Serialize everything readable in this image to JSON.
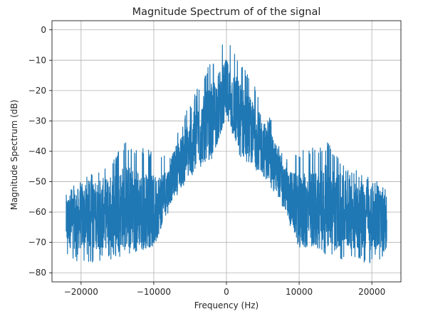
{
  "chart_data": {
    "type": "line",
    "title": "Magnitude Spectrum of of the signal",
    "xlabel": "Frequency (Hz)",
    "ylabel": "Magnitude Spectrum (dB)",
    "xlim": [
      -24000,
      24000
    ],
    "ylim": [
      -83,
      3
    ],
    "grid": true,
    "x_ticks": [
      -20000,
      -10000,
      0,
      10000,
      20000
    ],
    "x_tick_labels": [
      "−20000",
      "−10000",
      "0",
      "10000",
      "20000"
    ],
    "y_ticks": [
      0,
      -10,
      -20,
      -30,
      -40,
      -50,
      -60,
      -70,
      -80
    ],
    "y_tick_labels": [
      "0",
      "−10",
      "−20",
      "−30",
      "−40",
      "−50",
      "−60",
      "−70",
      "−80"
    ],
    "series": [
      {
        "color": "#1f77b4",
        "envelope": {
          "x": [
            -22050,
            -20000,
            -16000,
            -14000,
            -10000,
            -8000,
            -7000,
            -4000,
            -2000,
            0,
            2000,
            4000,
            7000,
            8000,
            10000,
            14000,
            16000,
            20000,
            22050
          ],
          "upper": [
            -52,
            -49,
            -44,
            -37,
            -40,
            -42,
            -34,
            -19,
            -10,
            0,
            -10,
            -19,
            -34,
            -42,
            -40,
            -37,
            -44,
            -49,
            -52
          ],
          "lower": [
            -75,
            -77,
            -76,
            -74,
            -72,
            -60,
            -55,
            -46,
            -43,
            -28,
            -43,
            -46,
            -55,
            -60,
            -72,
            -74,
            -76,
            -77,
            -75
          ],
          "center": [
            -63,
            -62,
            -60,
            -58,
            -60,
            -52,
            -46,
            -35,
            -30,
            -20,
            -30,
            -35,
            -46,
            -52,
            -60,
            -58,
            -60,
            -62,
            -63
          ]
        }
      }
    ]
  }
}
